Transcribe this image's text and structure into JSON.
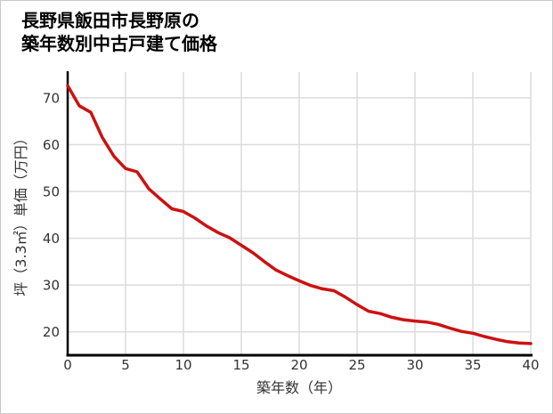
{
  "title": {
    "line1": "長野県飯田市長野原の",
    "line2": "築年数別中古戸建て価格"
  },
  "chart_data": {
    "type": "line",
    "title": "長野県飯田市長野原の築年数別中古戸建て価格",
    "xlabel": "築年数（年）",
    "ylabel": "坪（3.3㎡）単価（万円）",
    "x_ticks": [
      0,
      5,
      10,
      15,
      20,
      25,
      30,
      35,
      40
    ],
    "y_ticks": [
      20,
      30,
      40,
      50,
      60,
      70
    ],
    "xlim": [
      0,
      40
    ],
    "ylim": [
      15,
      75.5
    ],
    "grid": true,
    "legend": "none",
    "series": [
      {
        "name": "坪単価（万円）",
        "x": [
          0,
          1,
          2,
          3,
          4,
          5,
          6,
          7,
          8,
          9,
          10,
          11,
          12,
          13,
          14,
          15,
          16,
          17,
          18,
          19,
          20,
          21,
          22,
          23,
          24,
          25,
          26,
          27,
          28,
          29,
          30,
          31,
          32,
          33,
          34,
          35,
          36,
          37,
          38,
          39,
          40
        ],
        "values": [
          72.6,
          68.3,
          66.9,
          61.5,
          57.5,
          54.9,
          54.2,
          50.6,
          48.4,
          46.3,
          45.7,
          44.3,
          42.6,
          41.2,
          40.1,
          38.5,
          36.9,
          35.0,
          33.2,
          32.0,
          30.9,
          29.9,
          29.2,
          28.8,
          27.4,
          25.8,
          24.4,
          23.9,
          23.1,
          22.6,
          22.3,
          22.1,
          21.6,
          20.8,
          20.1,
          19.7,
          19.0,
          18.4,
          17.9,
          17.6,
          17.5
        ]
      }
    ]
  },
  "colors": {
    "line": "#cc1111",
    "axis": "#000000",
    "grid": "#dcdcdc",
    "tick_label": "#333333",
    "frame_border": "#c9c9c9",
    "background": "#ffffff"
  }
}
